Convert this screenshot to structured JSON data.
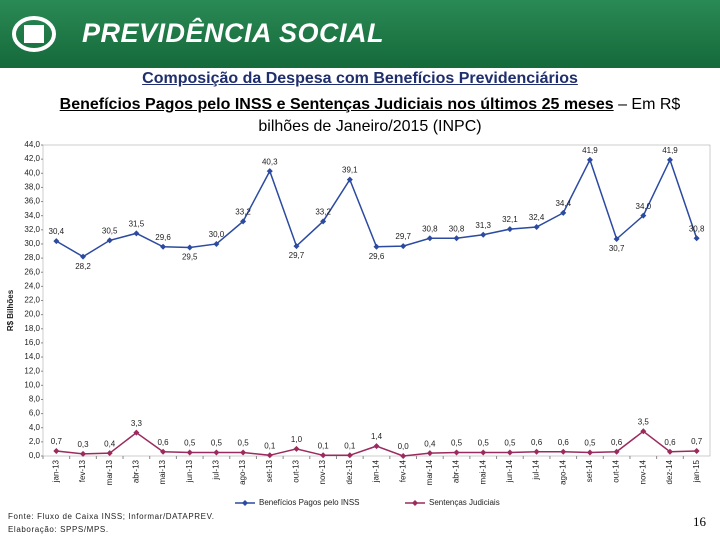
{
  "header": {
    "brand": "PREVIDÊNCIA SOCIAL"
  },
  "chart_data": {
    "type": "line",
    "title": "Composição da Despesa com Benefícios Previdenciários",
    "subtitle": "Benefícios Pagos pelo INSS e Sentenças Judiciais nos últimos 25 meses",
    "units_note": " – Em R$ bilhões de Janeiro/2015 (INPC)",
    "y_label": "R$ Bilhões",
    "categories": [
      "jan-13",
      "fev-13",
      "mar-13",
      "abr-13",
      "mai-13",
      "jun-13",
      "jul-13",
      "ago-13",
      "set-13",
      "out-13",
      "nov-13",
      "dez-13",
      "jan-14",
      "fev-14",
      "mar-14",
      "abr-14",
      "mai-14",
      "jun-14",
      "jul-14",
      "ago-14",
      "set-14",
      "out-14",
      "nov-14",
      "dez-14",
      "jan-15"
    ],
    "series": [
      {
        "name": "Benefícios Pagos pelo INSS",
        "color": "#2b4aa0",
        "values": [
          30.4,
          28.2,
          30.5,
          31.5,
          29.6,
          29.5,
          30.0,
          33.2,
          40.3,
          29.7,
          33.2,
          39.1,
          29.6,
          29.7,
          30.8,
          30.8,
          31.3,
          32.1,
          32.4,
          34.4,
          41.9,
          30.7,
          34.0,
          41.9,
          30.8
        ],
        "value_labels": [
          "30,4",
          "28,2",
          "30,5",
          "31,5",
          "29,6",
          "29,5",
          "30,0",
          "33,2",
          "40,3",
          "29,7",
          "33,2",
          "39,1",
          "29,6",
          "29,7",
          "30,8",
          "30,8",
          "31,3",
          "32,1",
          "32,4",
          "34,4",
          "41,9",
          "30,7",
          "34,0",
          "41,9",
          "30,8"
        ]
      },
      {
        "name": "Sentenças Judiciais",
        "color": "#9b2a5e",
        "values": [
          0.7,
          0.3,
          0.4,
          3.3,
          0.6,
          0.5,
          0.5,
          0.5,
          0.1,
          1.0,
          0.1,
          0.1,
          1.4,
          0.0,
          0.4,
          0.5,
          0.5,
          0.5,
          0.6,
          0.6,
          0.5,
          0.6,
          3.5,
          0.6,
          0.7
        ],
        "value_labels": [
          "0,7",
          "0,3",
          "0,4",
          "3,3",
          "0,6",
          "0,5",
          "0,5",
          "0,5",
          "0,1",
          "1,0",
          "0,1",
          "0,1",
          "1,4",
          "0,0",
          "0,4",
          "0,5",
          "0,5",
          "0,5",
          "0,6",
          "0,6",
          "0,5",
          "0,6",
          "3,5",
          "0,6",
          "0,7"
        ]
      }
    ],
    "ylim": [
      0,
      44
    ],
    "yticks": [
      {
        "value": 0,
        "label": "0,0"
      },
      {
        "value": 2,
        "label": "2,0"
      },
      {
        "value": 4,
        "label": "4,0"
      },
      {
        "value": 6,
        "label": "6,0"
      },
      {
        "value": 8,
        "label": "8,0"
      },
      {
        "value": 10,
        "label": "10,0"
      },
      {
        "value": 12,
        "label": "12,0"
      },
      {
        "value": 14,
        "label": "14,0"
      },
      {
        "value": 16,
        "label": "16,0"
      },
      {
        "value": 18,
        "label": "18,0"
      },
      {
        "value": 20,
        "label": "20,0"
      },
      {
        "value": 22,
        "label": "22,0"
      },
      {
        "value": 24,
        "label": "24,0"
      },
      {
        "value": 26,
        "label": "26,0"
      },
      {
        "value": 28,
        "label": "28,0"
      },
      {
        "value": 30,
        "label": "30,0"
      },
      {
        "value": 32,
        "label": "32,0"
      },
      {
        "value": 34,
        "label": "34,0"
      },
      {
        "value": 36,
        "label": "36,0"
      },
      {
        "value": 38,
        "label": "38,0"
      },
      {
        "value": 40,
        "label": "40,0"
      },
      {
        "value": 42,
        "label": "42,0"
      },
      {
        "value": 44,
        "label": "44,0"
      }
    ],
    "legend": "bottom"
  },
  "footer": {
    "source": "Fonte: Fluxo de Caixa INSS; Informar/DATAPREV.",
    "credit": "Elaboração: SPPS/MPS.",
    "page": "16"
  }
}
